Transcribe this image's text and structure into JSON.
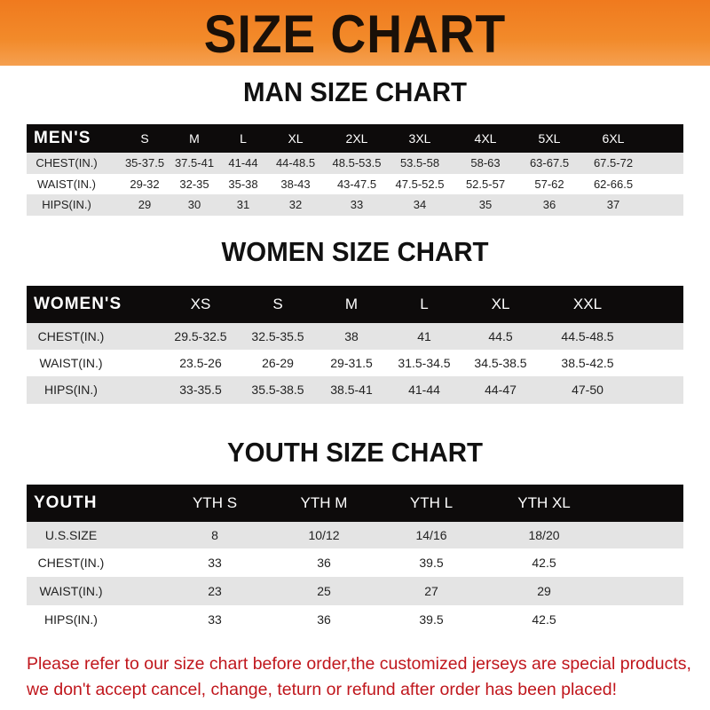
{
  "banner": {
    "title": "SIZE CHART",
    "color": "#f07a1e"
  },
  "men": {
    "title": "MAN SIZE CHART",
    "header": [
      "MEN'S",
      "S",
      "M",
      "L",
      "XL",
      "2XL",
      "3XL",
      "4XL",
      "5XL",
      "6XL"
    ],
    "rows": [
      [
        "CHEST(IN.)",
        "35-37.5",
        "37.5-41",
        "41-44",
        "44-48.5",
        "48.5-53.5",
        "53.5-58",
        "58-63",
        "63-67.5",
        "67.5-72"
      ],
      [
        "WAIST(IN.)",
        "29-32",
        "32-35",
        "35-38",
        "38-43",
        "43-47.5",
        "47.5-52.5",
        "52.5-57",
        "57-62",
        "62-66.5"
      ],
      [
        "HIPS(IN.)",
        "29",
        "30",
        "31",
        "32",
        "33",
        "34",
        "35",
        "36",
        "37"
      ]
    ]
  },
  "women": {
    "title": "WOMEN SIZE CHART",
    "header": [
      "WOMEN'S",
      "XS",
      "S",
      "M",
      "L",
      "XL",
      "XXL"
    ],
    "rows": [
      [
        "CHEST(IN.)",
        "29.5-32.5",
        "32.5-35.5",
        "38",
        "41",
        "44.5",
        "44.5-48.5"
      ],
      [
        "WAIST(IN.)",
        "23.5-26",
        "26-29",
        "29-31.5",
        "31.5-34.5",
        "34.5-38.5",
        "38.5-42.5"
      ],
      [
        "HIPS(IN.)",
        "33-35.5",
        "35.5-38.5",
        "38.5-41",
        "41-44",
        "44-47",
        "47-50"
      ]
    ]
  },
  "youth": {
    "title": "YOUTH SIZE CHART",
    "header": [
      "YOUTH",
      "YTH S",
      "YTH M",
      "YTH L",
      "YTH XL"
    ],
    "rows": [
      [
        "U.S.SIZE",
        "8",
        "10/12",
        "14/16",
        "18/20"
      ],
      [
        "CHEST(IN.)",
        "33",
        "36",
        "39.5",
        "42.5"
      ],
      [
        "WAIST(IN.)",
        "23",
        "25",
        "27",
        "29"
      ],
      [
        "HIPS(IN.)",
        "33",
        "36",
        "39.5",
        "42.5"
      ]
    ]
  },
  "footer": {
    "line1": "Please refer to our size chart before order,the customized jerseys are special products,",
    "line2": "we don't accept cancel, change, teturn or refund after order has been placed!",
    "color": "#c0161c"
  }
}
